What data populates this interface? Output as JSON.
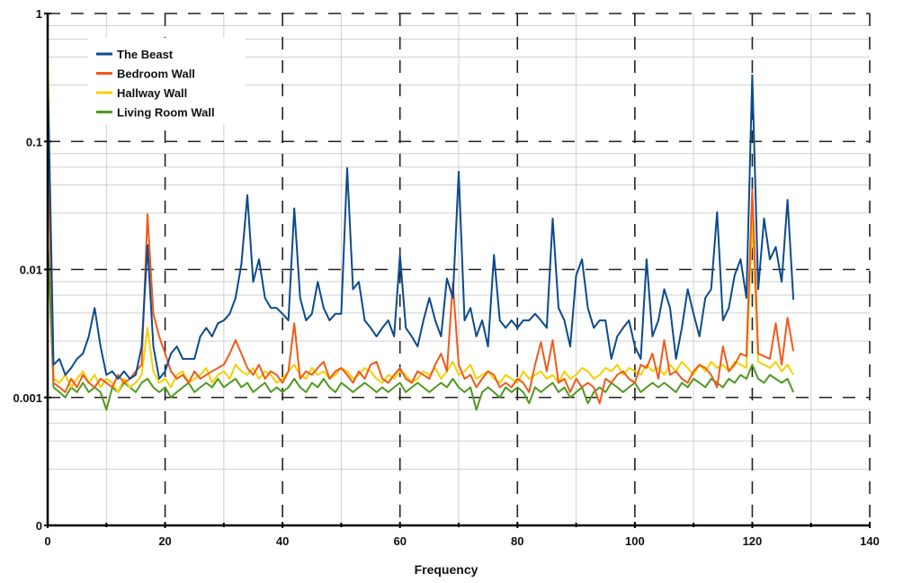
{
  "chart_data": {
    "type": "line",
    "title": "",
    "xlabel": "Frequency",
    "ylabel": "",
    "xlim": [
      0,
      140
    ],
    "ylim": [
      0.0001,
      1
    ],
    "yscale": "log",
    "grid": true,
    "legend_position": "top-left",
    "x_ticks": [
      0,
      20,
      40,
      60,
      80,
      100,
      120,
      140
    ],
    "x_tick_labels": [
      "0",
      "20",
      "40",
      "60",
      "80",
      "100",
      "120",
      "140"
    ],
    "y_ticks": [
      1,
      0.1,
      0.01,
      0.001,
      0.0001
    ],
    "y_tick_labels": [
      "1",
      "0.1",
      "0.01",
      "0.001",
      "0"
    ],
    "x_step": 1,
    "series": [
      {
        "name": "The Beast",
        "color": "#0b4a8f",
        "values": [
          0.35,
          0.0018,
          0.002,
          0.0015,
          0.0017,
          0.002,
          0.0022,
          0.003,
          0.005,
          0.0025,
          0.0015,
          0.0016,
          0.0014,
          0.0016,
          0.0014,
          0.0015,
          0.0025,
          0.0155,
          0.0025,
          0.0014,
          0.0016,
          0.0022,
          0.0025,
          0.002,
          0.002,
          0.002,
          0.003,
          0.0035,
          0.003,
          0.0038,
          0.004,
          0.0045,
          0.006,
          0.011,
          0.038,
          0.008,
          0.012,
          0.006,
          0.005,
          0.005,
          0.0045,
          0.004,
          0.03,
          0.006,
          0.004,
          0.0045,
          0.008,
          0.005,
          0.004,
          0.0045,
          0.0045,
          0.062,
          0.007,
          0.008,
          0.004,
          0.0035,
          0.003,
          0.0035,
          0.004,
          0.003,
          0.013,
          0.0035,
          0.003,
          0.0025,
          0.004,
          0.006,
          0.004,
          0.003,
          0.0085,
          0.006,
          0.058,
          0.004,
          0.005,
          0.003,
          0.004,
          0.0025,
          0.013,
          0.004,
          0.0035,
          0.004,
          0.0035,
          0.004,
          0.004,
          0.0045,
          0.004,
          0.0035,
          0.025,
          0.005,
          0.004,
          0.0025,
          0.009,
          0.012,
          0.005,
          0.0035,
          0.004,
          0.004,
          0.002,
          0.003,
          0.0035,
          0.004,
          0.0025,
          0.002,
          0.012,
          0.003,
          0.004,
          0.007,
          0.005,
          0.002,
          0.0035,
          0.007,
          0.0045,
          0.003,
          0.006,
          0.007,
          0.028,
          0.004,
          0.005,
          0.009,
          0.012,
          0.006,
          0.33,
          0.007,
          0.025,
          0.012,
          0.015,
          0.008,
          0.035,
          0.0058
        ]
      },
      {
        "name": "Bedroom Wall",
        "color": "#f05a1a",
        "values": [
          0.12,
          0.0013,
          0.0012,
          0.0011,
          0.0014,
          0.0012,
          0.0015,
          0.0013,
          0.0012,
          0.0014,
          0.0013,
          0.0012,
          0.0015,
          0.0013,
          0.0014,
          0.0016,
          0.0018,
          0.027,
          0.0045,
          0.003,
          0.0022,
          0.0016,
          0.0014,
          0.0015,
          0.0013,
          0.0016,
          0.0014,
          0.0015,
          0.0016,
          0.0017,
          0.0018,
          0.0022,
          0.0028,
          0.0022,
          0.0017,
          0.0015,
          0.0018,
          0.0014,
          0.0016,
          0.0015,
          0.0013,
          0.0016,
          0.0038,
          0.0014,
          0.0016,
          0.0015,
          0.0017,
          0.0019,
          0.0014,
          0.0016,
          0.0017,
          0.0015,
          0.0013,
          0.0016,
          0.0014,
          0.0018,
          0.0019,
          0.0014,
          0.0013,
          0.0015,
          0.0017,
          0.0014,
          0.0013,
          0.0016,
          0.0015,
          0.0014,
          0.0018,
          0.0022,
          0.0016,
          0.0078,
          0.0018,
          0.0014,
          0.0015,
          0.0012,
          0.0014,
          0.0016,
          0.0015,
          0.0012,
          0.0013,
          0.0012,
          0.0014,
          0.0013,
          0.0011,
          0.0018,
          0.0027,
          0.0016,
          0.0028,
          0.0013,
          0.0014,
          0.0011,
          0.0014,
          0.0012,
          0.0013,
          0.0012,
          0.0009,
          0.0014,
          0.0013,
          0.0015,
          0.0016,
          0.0014,
          0.0013,
          0.0018,
          0.0017,
          0.0022,
          0.0014,
          0.0028,
          0.0015,
          0.0016,
          0.0014,
          0.0013,
          0.0016,
          0.0018,
          0.0017,
          0.0015,
          0.0012,
          0.0025,
          0.0016,
          0.0018,
          0.0022,
          0.0021,
          0.042,
          0.0022,
          0.0021,
          0.002,
          0.0038,
          0.0018,
          0.0042,
          0.0023
        ]
      },
      {
        "name": "Hallway Wall",
        "color": "#f5d000",
        "values": [
          0.5,
          0.0014,
          0.0013,
          0.0015,
          0.0012,
          0.0014,
          0.0016,
          0.0013,
          0.0015,
          0.0012,
          0.0014,
          0.0013,
          0.0011,
          0.0014,
          0.0012,
          0.0013,
          0.0015,
          0.0035,
          0.0016,
          0.0013,
          0.0014,
          0.0012,
          0.0015,
          0.0016,
          0.0013,
          0.0014,
          0.0015,
          0.0017,
          0.0013,
          0.0015,
          0.0016,
          0.0014,
          0.0018,
          0.0016,
          0.0015,
          0.0017,
          0.0014,
          0.0016,
          0.0015,
          0.0013,
          0.0014,
          0.0016,
          0.0018,
          0.0015,
          0.0014,
          0.0017,
          0.0015,
          0.0016,
          0.0014,
          0.0015,
          0.0017,
          0.0016,
          0.0014,
          0.0015,
          0.0017,
          0.0016,
          0.0014,
          0.0013,
          0.0015,
          0.0014,
          0.0016,
          0.0015,
          0.0013,
          0.0014,
          0.0016,
          0.0015,
          0.0017,
          0.0014,
          0.0016,
          0.0019,
          0.0015,
          0.0016,
          0.0018,
          0.0014,
          0.0015,
          0.0016,
          0.0014,
          0.0013,
          0.0015,
          0.0014,
          0.0013,
          0.0016,
          0.0014,
          0.0015,
          0.0016,
          0.0014,
          0.0015,
          0.0013,
          0.0016,
          0.0014,
          0.0015,
          0.0017,
          0.0016,
          0.0014,
          0.0015,
          0.0017,
          0.0016,
          0.0018,
          0.0015,
          0.0017,
          0.0016,
          0.0015,
          0.0018,
          0.0016,
          0.0017,
          0.0015,
          0.0018,
          0.0016,
          0.0019,
          0.0017,
          0.0015,
          0.0018,
          0.0016,
          0.0019,
          0.0017,
          0.0018,
          0.0016,
          0.0019,
          0.0018,
          0.0017,
          0.025,
          0.0019,
          0.0018,
          0.0017,
          0.0019,
          0.0016,
          0.0018,
          0.0015
        ]
      },
      {
        "name": "Living Room Wall",
        "color": "#4e9a1e",
        "values": [
          0.018,
          0.0012,
          0.0011,
          0.001,
          0.0012,
          0.0011,
          0.0013,
          0.0011,
          0.0012,
          0.0011,
          0.0008,
          0.0012,
          0.0011,
          0.0013,
          0.0012,
          0.0011,
          0.0013,
          0.0014,
          0.0012,
          0.0011,
          0.0012,
          0.001,
          0.0011,
          0.0012,
          0.0013,
          0.0011,
          0.0012,
          0.0013,
          0.0012,
          0.0014,
          0.0012,
          0.0013,
          0.0014,
          0.0012,
          0.0013,
          0.0011,
          0.0012,
          0.0013,
          0.0011,
          0.0012,
          0.0011,
          0.0012,
          0.0014,
          0.0012,
          0.0011,
          0.0013,
          0.0012,
          0.0014,
          0.0012,
          0.0011,
          0.0013,
          0.0012,
          0.0011,
          0.0012,
          0.0013,
          0.0012,
          0.0011,
          0.0012,
          0.0011,
          0.0012,
          0.0013,
          0.0011,
          0.0012,
          0.0013,
          0.0012,
          0.0011,
          0.0012,
          0.0013,
          0.0012,
          0.0014,
          0.0012,
          0.0011,
          0.0012,
          0.0008,
          0.0011,
          0.0012,
          0.0011,
          0.001,
          0.0012,
          0.0011,
          0.0012,
          0.0011,
          0.0009,
          0.0012,
          0.0011,
          0.0012,
          0.0013,
          0.0011,
          0.0012,
          0.001,
          0.0011,
          0.0012,
          0.0009,
          0.0011,
          0.0012,
          0.0011,
          0.0013,
          0.0012,
          0.0011,
          0.0012,
          0.0013,
          0.0011,
          0.0012,
          0.0013,
          0.0012,
          0.0013,
          0.0012,
          0.0011,
          0.0013,
          0.0012,
          0.0014,
          0.0013,
          0.0012,
          0.0014,
          0.0013,
          0.0012,
          0.0014,
          0.0013,
          0.0015,
          0.0014,
          0.0018,
          0.0014,
          0.0013,
          0.0015,
          0.0014,
          0.0013,
          0.0014,
          0.0011
        ]
      }
    ]
  }
}
